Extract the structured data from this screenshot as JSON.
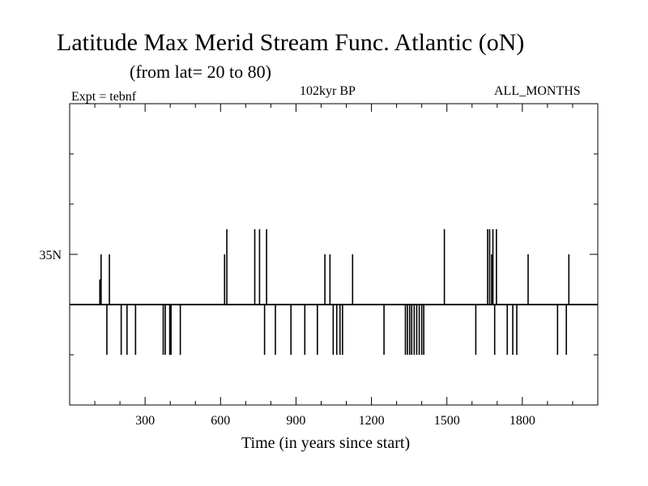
{
  "chart_data": {
    "type": "line",
    "title": "Latitude Max Merid Stream Func. Atlantic (oN)",
    "subtitle": "(from lat= 20 to 80)",
    "annotations": {
      "experiment": "Expt = tebnf",
      "period": "102kyr BP",
      "months": "ALL_MONTHS"
    },
    "xlabel": "Time (in years since start)",
    "ylabel": "",
    "xlim": [
      0,
      2100
    ],
    "ylim": [
      20,
      50
    ],
    "x_ticks": [
      300,
      600,
      900,
      1200,
      1500,
      1800
    ],
    "y_labeled_ticks": [
      {
        "value": 35,
        "label": "35N"
      }
    ],
    "y_minor_ticks": [
      25,
      30,
      40,
      45
    ],
    "baseline": 30,
    "grid": false,
    "spikes": [
      {
        "x": 120,
        "y": 32.5
      },
      {
        "x": 125,
        "y": 35
      },
      {
        "x": 148,
        "y": 25
      },
      {
        "x": 158,
        "y": 35
      },
      {
        "x": 205,
        "y": 25
      },
      {
        "x": 228,
        "y": 25
      },
      {
        "x": 262,
        "y": 25
      },
      {
        "x": 372,
        "y": 25
      },
      {
        "x": 380,
        "y": 25
      },
      {
        "x": 398,
        "y": 25
      },
      {
        "x": 403,
        "y": 25
      },
      {
        "x": 440,
        "y": 25
      },
      {
        "x": 616,
        "y": 35
      },
      {
        "x": 625,
        "y": 37.5
      },
      {
        "x": 736,
        "y": 37.5
      },
      {
        "x": 755,
        "y": 37.5
      },
      {
        "x": 775,
        "y": 25
      },
      {
        "x": 783,
        "y": 37.5
      },
      {
        "x": 818,
        "y": 25
      },
      {
        "x": 880,
        "y": 25
      },
      {
        "x": 935,
        "y": 25
      },
      {
        "x": 985,
        "y": 25
      },
      {
        "x": 1015,
        "y": 35
      },
      {
        "x": 1035,
        "y": 35
      },
      {
        "x": 1048,
        "y": 25
      },
      {
        "x": 1062,
        "y": 25
      },
      {
        "x": 1075,
        "y": 25
      },
      {
        "x": 1085,
        "y": 25
      },
      {
        "x": 1125,
        "y": 35
      },
      {
        "x": 1250,
        "y": 25
      },
      {
        "x": 1335,
        "y": 25
      },
      {
        "x": 1343,
        "y": 25
      },
      {
        "x": 1352,
        "y": 25
      },
      {
        "x": 1360,
        "y": 25
      },
      {
        "x": 1370,
        "y": 25
      },
      {
        "x": 1380,
        "y": 25
      },
      {
        "x": 1390,
        "y": 25
      },
      {
        "x": 1400,
        "y": 25
      },
      {
        "x": 1408,
        "y": 25
      },
      {
        "x": 1490,
        "y": 37.5
      },
      {
        "x": 1615,
        "y": 25
      },
      {
        "x": 1662,
        "y": 37.5
      },
      {
        "x": 1670,
        "y": 37.5
      },
      {
        "x": 1678,
        "y": 35
      },
      {
        "x": 1683,
        "y": 37.5
      },
      {
        "x": 1690,
        "y": 25
      },
      {
        "x": 1697,
        "y": 37.5
      },
      {
        "x": 1740,
        "y": 25
      },
      {
        "x": 1762,
        "y": 25
      },
      {
        "x": 1778,
        "y": 25
      },
      {
        "x": 1823,
        "y": 35
      },
      {
        "x": 1940,
        "y": 25
      },
      {
        "x": 1975,
        "y": 25
      },
      {
        "x": 1985,
        "y": 35
      }
    ]
  }
}
